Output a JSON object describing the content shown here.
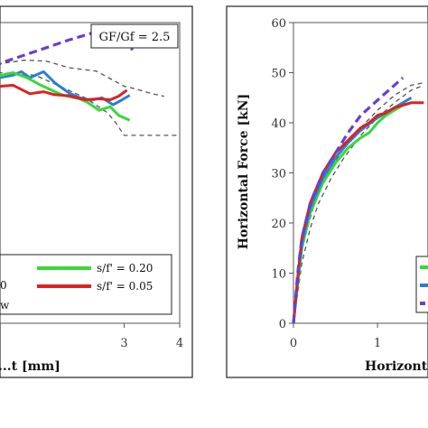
{
  "chart_data": [
    {
      "type": "line",
      "title": "",
      "xlabel": "...t [mm]",
      "ylabel": "",
      "xlim": [
        0,
        4
      ],
      "ylim": [
        0,
        60
      ],
      "x_ticks": [
        {
          "value": 3,
          "label": "3"
        },
        {
          "value": 4,
          "label": "4"
        }
      ],
      "annotation": "GF/Gf = 2.5",
      "legend": [
        "s/f' = 0.20",
        "s/f' = 0.05"
      ],
      "legend_fragments": [
        "0",
        "w"
      ],
      "series": [
        {
          "name": "",
          "color": "#6a3fd0",
          "style": "dash",
          "points": [
            [
              0.0,
              49
            ],
            [
              0.4,
              50
            ],
            [
              0.8,
              52
            ],
            [
              1.2,
              53.5
            ],
            [
              1.6,
              55
            ],
            [
              2.0,
              56.5
            ],
            [
              2.3,
              57.5
            ],
            [
              2.55,
              58.3
            ],
            [
              2.8,
              58.5
            ],
            [
              3.0,
              57
            ],
            [
              3.15,
              54.5
            ]
          ]
        },
        {
          "name": "",
          "color": "#555555",
          "style": "dash",
          "points": [
            [
              0.0,
              50
            ],
            [
              0.6,
              51.5
            ],
            [
              1.2,
              52.5
            ],
            [
              1.6,
              52.3
            ],
            [
              2.0,
              51
            ],
            [
              2.5,
              50.3
            ],
            [
              2.8,
              48.5
            ],
            [
              3.0,
              47.3
            ],
            [
              3.2,
              46.8
            ],
            [
              3.5,
              45.8
            ],
            [
              3.72,
              45.3
            ]
          ]
        },
        {
          "name": "",
          "color": "#555555",
          "style": "dash",
          "points": [
            [
              0.0,
              49
            ],
            [
              0.8,
              50
            ],
            [
              1.4,
              49.5
            ],
            [
              1.9,
              47
            ],
            [
              2.3,
              45
            ],
            [
              2.7,
              42
            ],
            [
              2.85,
              40
            ],
            [
              3.0,
              37.5
            ],
            [
              3.3,
              37.5
            ],
            [
              4.0,
              37.5
            ]
          ]
        },
        {
          "name": "",
          "color": "#2a7fd4",
          "style": "solid",
          "points": [
            [
              0.0,
              47
            ],
            [
              0.5,
              48.5
            ],
            [
              1.0,
              49.5
            ],
            [
              1.15,
              50.2
            ],
            [
              1.3,
              49
            ],
            [
              1.55,
              50.2
            ],
            [
              1.75,
              48
            ],
            [
              2.0,
              46
            ],
            [
              2.2,
              45
            ],
            [
              2.4,
              44.5
            ],
            [
              2.6,
              45
            ],
            [
              2.8,
              43.6
            ],
            [
              2.95,
              44.5
            ],
            [
              3.1,
              45.5
            ]
          ]
        },
        {
          "name": "s/f' = 0.20",
          "color": "#38d838",
          "style": "solid",
          "points": [
            [
              0.0,
              48
            ],
            [
              0.6,
              49
            ],
            [
              1.0,
              50
            ],
            [
              1.25,
              49
            ],
            [
              1.5,
              47.5
            ],
            [
              1.9,
              45.5
            ],
            [
              2.2,
              44.8
            ],
            [
              2.35,
              44
            ],
            [
              2.55,
              42.5
            ],
            [
              2.75,
              43.2
            ],
            [
              2.9,
              41.5
            ],
            [
              3.1,
              40.5
            ]
          ]
        },
        {
          "name": "s/f' = 0.05",
          "color": "#dd2222",
          "style": "solid",
          "points": [
            [
              0.0,
              46
            ],
            [
              0.5,
              47
            ],
            [
              1.0,
              47.5
            ],
            [
              1.3,
              45.8
            ],
            [
              1.55,
              46.2
            ],
            [
              1.75,
              45.6
            ],
            [
              2.0,
              45.4
            ],
            [
              2.3,
              44.6
            ],
            [
              2.55,
              44.8
            ],
            [
              2.75,
              44.6
            ],
            [
              2.9,
              45.3
            ],
            [
              3.05,
              46.5
            ]
          ]
        }
      ]
    },
    {
      "type": "line",
      "title": "",
      "xlabel": "Horizont",
      "ylabel": "Horizontal Force [kN]",
      "xlim": [
        0,
        1.6
      ],
      "ylim": [
        0,
        60
      ],
      "x_ticks": [
        {
          "value": 0,
          "label": "0"
        },
        {
          "value": 1,
          "label": "1"
        }
      ],
      "y_ticks": [
        {
          "value": 0,
          "label": "0"
        },
        {
          "value": 10,
          "label": "10"
        },
        {
          "value": 20,
          "label": "20"
        },
        {
          "value": 30,
          "label": "30"
        },
        {
          "value": 40,
          "label": "40"
        },
        {
          "value": 50,
          "label": "50"
        },
        {
          "value": 60,
          "label": "60"
        }
      ],
      "series": [
        {
          "name": "",
          "color": "#555555",
          "style": "dash",
          "points": [
            [
              0,
              0
            ],
            [
              0.05,
              6
            ],
            [
              0.1,
              12
            ],
            [
              0.2,
              19
            ],
            [
              0.3,
              24
            ],
            [
              0.45,
              29
            ],
            [
              0.6,
              33
            ],
            [
              0.8,
              37.5
            ],
            [
              1.0,
              41
            ],
            [
              1.2,
              44
            ],
            [
              1.4,
              46.5
            ],
            [
              1.55,
              47.5
            ]
          ]
        },
        {
          "name": "",
          "color": "#555555",
          "style": "dash",
          "points": [
            [
              0,
              0
            ],
            [
              0.05,
              8
            ],
            [
              0.1,
              15
            ],
            [
              0.2,
              21
            ],
            [
              0.3,
              26.5
            ],
            [
              0.45,
              31
            ],
            [
              0.6,
              35
            ],
            [
              0.8,
              39
            ],
            [
              1.0,
              42.5
            ],
            [
              1.2,
              45.5
            ],
            [
              1.4,
              47.5
            ],
            [
              1.55,
              48
            ]
          ]
        },
        {
          "name": "",
          "color": "#38d838",
          "style": "solid",
          "points": [
            [
              0,
              0
            ],
            [
              0.05,
              8
            ],
            [
              0.1,
              15
            ],
            [
              0.2,
              22
            ],
            [
              0.35,
              28
            ],
            [
              0.5,
              32
            ],
            [
              0.65,
              35
            ],
            [
              0.8,
              37
            ],
            [
              0.9,
              38
            ],
            [
              1.0,
              40
            ],
            [
              1.1,
              41.5
            ],
            [
              1.2,
              42.5
            ],
            [
              1.3,
              43.5
            ],
            [
              1.4,
              44
            ]
          ]
        },
        {
          "name": "",
          "color": "#2a7fd4",
          "style": "solid",
          "points": [
            [
              0,
              0
            ],
            [
              0.05,
              9
            ],
            [
              0.1,
              16
            ],
            [
              0.2,
              23
            ],
            [
              0.35,
              29
            ],
            [
              0.5,
              33
            ],
            [
              0.65,
              36
            ],
            [
              0.8,
              38.5
            ],
            [
              1.0,
              41
            ],
            [
              1.15,
              42.5
            ],
            [
              1.3,
              44
            ],
            [
              1.4,
              45
            ]
          ]
        },
        {
          "name": "",
          "color": "#dd2222",
          "style": "solid",
          "points": [
            [
              0,
              0
            ],
            [
              0.05,
              9
            ],
            [
              0.1,
              17
            ],
            [
              0.2,
              24
            ],
            [
              0.35,
              30
            ],
            [
              0.5,
              34
            ],
            [
              0.65,
              36.5
            ],
            [
              0.8,
              39
            ],
            [
              0.9,
              40
            ],
            [
              1.0,
              41.5
            ],
            [
              1.1,
              42
            ],
            [
              1.2,
              43
            ],
            [
              1.3,
              43.5
            ],
            [
              1.4,
              44
            ],
            [
              1.55,
              44
            ]
          ]
        },
        {
          "name": "",
          "color": "#6a3fd0",
          "style": "dash",
          "points": [
            [
              0,
              0
            ],
            [
              0.05,
              10
            ],
            [
              0.1,
              17
            ],
            [
              0.2,
              24
            ],
            [
              0.35,
              30
            ],
            [
              0.5,
              34
            ],
            [
              0.65,
              38
            ],
            [
              0.8,
              41.5
            ],
            [
              1.0,
              44.5
            ],
            [
              1.1,
              46
            ],
            [
              1.2,
              47.5
            ],
            [
              1.3,
              49
            ]
          ]
        }
      ]
    }
  ]
}
